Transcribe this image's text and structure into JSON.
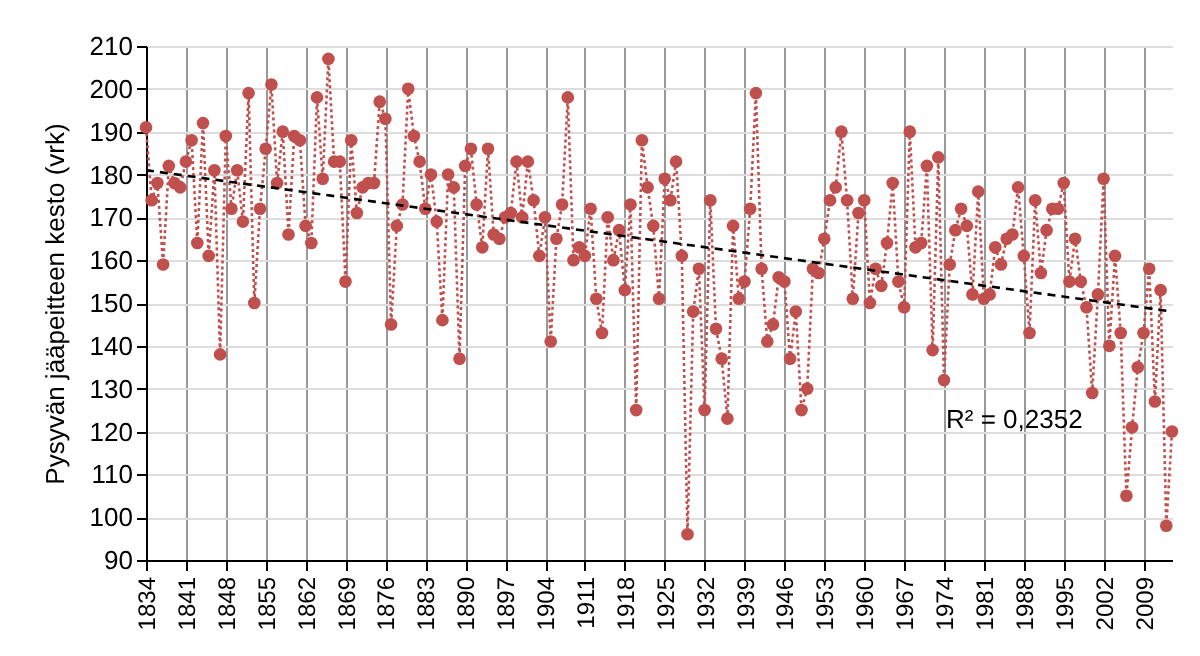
{
  "chart_data": {
    "type": "line",
    "ylabel": "Pysyvän jääpeitteen kesto (vrk)",
    "xlim": [
      1834,
      2014
    ],
    "xticks": [
      1834,
      1841,
      1848,
      1855,
      1862,
      1869,
      1876,
      1883,
      1890,
      1897,
      1904,
      1911,
      1918,
      1925,
      1932,
      1939,
      1946,
      1953,
      1960,
      1967,
      1974,
      1981,
      1988,
      1995,
      2002,
      2009
    ],
    "ylim": [
      90,
      210
    ],
    "yticks": [
      90,
      100,
      110,
      120,
      130,
      140,
      150,
      160,
      170,
      180,
      190,
      200,
      210
    ],
    "grid": true,
    "annotations": [
      "R² = 0,2352"
    ],
    "series": [
      {
        "color": "#c0504d",
        "marker": "circle",
        "line_style": "dotted",
        "x": [
          1834,
          1835,
          1836,
          1837,
          1838,
          1839,
          1840,
          1841,
          1842,
          1843,
          1844,
          1845,
          1846,
          1847,
          1848,
          1849,
          1850,
          1851,
          1852,
          1853,
          1854,
          1855,
          1856,
          1857,
          1858,
          1859,
          1860,
          1861,
          1862,
          1863,
          1864,
          1865,
          1866,
          1867,
          1868,
          1869,
          1870,
          1871,
          1872,
          1873,
          1874,
          1875,
          1876,
          1877,
          1878,
          1879,
          1880,
          1881,
          1882,
          1883,
          1884,
          1885,
          1886,
          1887,
          1888,
          1889,
          1890,
          1891,
          1892,
          1893,
          1894,
          1895,
          1896,
          1897,
          1898,
          1899,
          1900,
          1901,
          1902,
          1903,
          1904,
          1905,
          1906,
          1907,
          1908,
          1909,
          1910,
          1911,
          1912,
          1913,
          1914,
          1915,
          1916,
          1917,
          1918,
          1919,
          1920,
          1921,
          1922,
          1923,
          1924,
          1925,
          1926,
          1927,
          1928,
          1929,
          1930,
          1931,
          1932,
          1933,
          1934,
          1935,
          1936,
          1937,
          1938,
          1939,
          1940,
          1941,
          1942,
          1943,
          1944,
          1945,
          1946,
          1947,
          1948,
          1949,
          1950,
          1951,
          1952,
          1953,
          1954,
          1955,
          1956,
          1957,
          1958,
          1959,
          1960,
          1961,
          1962,
          1963,
          1964,
          1965,
          1966,
          1967,
          1968,
          1969,
          1970,
          1971,
          1972,
          1973,
          1974,
          1975,
          1976,
          1977,
          1978,
          1979,
          1980,
          1981,
          1982,
          1983,
          1984,
          1985,
          1986,
          1987,
          1988,
          1989,
          1990,
          1991,
          1992,
          1993,
          1994,
          1995,
          1996,
          1997,
          1998,
          1999,
          2000,
          2001,
          2002,
          2003,
          2004,
          2005,
          2006,
          2007,
          2008,
          2009,
          2010,
          2011,
          2012,
          2013,
          2014
        ],
        "values": [
          191,
          174,
          178,
          159,
          182,
          178,
          177,
          183,
          188,
          164,
          192,
          161,
          181,
          138,
          189,
          172,
          181,
          169,
          199,
          150,
          172,
          186,
          201,
          178,
          190,
          166,
          189,
          188,
          168,
          164,
          198,
          179,
          207,
          183,
          183,
          155,
          188,
          171,
          177,
          178,
          178,
          197,
          193,
          145,
          168,
          173,
          200,
          189,
          183,
          172,
          180,
          169,
          146,
          180,
          177,
          137,
          182,
          186,
          173,
          163,
          186,
          166,
          165,
          170,
          171,
          183,
          170,
          183,
          174,
          161,
          170,
          141,
          165,
          173,
          198,
          160,
          163,
          161,
          172,
          151,
          143,
          170,
          160,
          167,
          153,
          173,
          125,
          188,
          177,
          168,
          151,
          179,
          174,
          183,
          161,
          96,
          148,
          158,
          125,
          174,
          144,
          137,
          123,
          168,
          151,
          155,
          172,
          199,
          158,
          141,
          145,
          156,
          155,
          137,
          148,
          125,
          130,
          158,
          157,
          165,
          174,
          177,
          190,
          174,
          151,
          171,
          174,
          150,
          158,
          154,
          164,
          178,
          155,
          149,
          190,
          163,
          164,
          182,
          139,
          184,
          132,
          159,
          167,
          172,
          168,
          152,
          176,
          151,
          152,
          163,
          159,
          165,
          166,
          177,
          161,
          143,
          174,
          157,
          167,
          172,
          172,
          178,
          155,
          165,
          155,
          149,
          129,
          152,
          179,
          140,
          161,
          143,
          105,
          121,
          135,
          143,
          158,
          127,
          153,
          98,
          120
        ]
      },
      {
        "color": "#000000",
        "marker": "none",
        "line_style": "dashed",
        "x": [
          1834,
          2014
        ],
        "values": [
          181,
          148
        ]
      }
    ]
  }
}
